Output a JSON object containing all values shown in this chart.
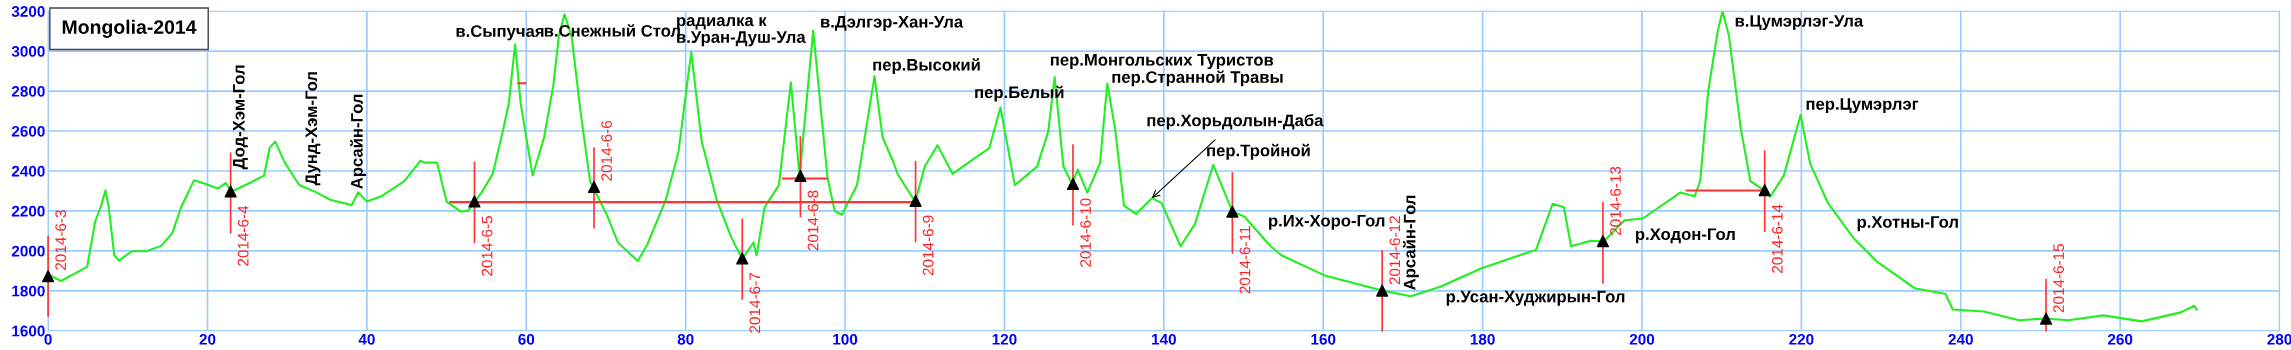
{
  "chart_data": {
    "type": "line",
    "title": "Mongolia-2014",
    "xlim": [
      0,
      280
    ],
    "xticks": [
      0,
      20,
      40,
      60,
      80,
      100,
      120,
      140,
      160,
      180,
      200,
      220,
      240,
      260,
      280
    ],
    "ylim": [
      1600,
      3200
    ],
    "yticks": [
      1600,
      1800,
      2000,
      2200,
      2400,
      2600,
      2800,
      3000,
      3200
    ],
    "grid": true,
    "legend": false,
    "series": [
      {
        "color": "#22ee22",
        "marker": "none",
        "x": [
          0,
          1.6,
          4.9,
          5.9,
          6.6,
          7.2,
          7.6,
          8.3,
          8.9,
          10.5,
          12.3,
          14.2,
          15.6,
          16.7,
          18.3,
          19.7,
          21.3,
          22.3,
          23.0,
          24.8,
          27.1,
          27.8,
          28.5,
          29.7,
          31.5,
          33.6,
          35.4,
          38.1,
          38.9,
          40.0,
          41.9,
          44.7,
          46.7,
          47.2,
          48.8,
          50.0,
          51.8,
          52.7,
          54.4,
          55.8,
          57.1,
          57.8,
          58.6,
          59.3,
          60.8,
          62.2,
          63.4,
          64.1,
          64.8,
          65.7,
          66.8,
          68.0,
          70.1,
          71.5,
          74.0,
          75.2,
          77.5,
          79.1,
          80.7,
          82.0,
          83.9,
          85.7,
          87.1,
          88.5,
          88.9,
          89.9,
          91.7,
          93.2,
          94.3,
          96.0,
          97.8,
          98.7,
          99.6,
          101.5,
          103.7,
          104.7,
          106.1,
          106.6,
          108.8,
          110.0,
          111.6,
          113.5,
          114.4,
          118.1,
          119.5,
          121.3,
          124.1,
          125.5,
          126.3,
          127.4,
          128.5,
          129.2,
          130.4,
          132.0,
          132.9,
          133.9,
          135.0,
          136.5,
          138.5,
          139.7,
          142.1,
          143.9,
          146.2,
          148.6,
          150.1,
          153.4,
          154.8,
          160.3,
          167.4,
          171.0,
          174.7,
          179.8,
          183.9,
          186.7,
          188.8,
          190.2,
          191.1,
          193.6,
          195.2,
          197.8,
          200.1,
          204.8,
          206.6,
          207.3,
          208.3,
          209.5,
          210.1,
          210.9,
          212.4,
          213.6,
          215.3,
          216.1,
          217.8,
          219.9,
          221.1,
          223.3,
          226.5,
          229.4,
          234.2,
          238.1,
          239.0,
          242.9,
          247.3,
          250.5,
          253.5,
          257.9,
          262.7,
          267.6,
          269.3,
          269.6
        ],
        "values": [
          1883,
          1849,
          1920,
          2146,
          2220,
          2303,
          2220,
          1979,
          1951,
          1998,
          1998,
          2025,
          2090,
          2220,
          2353,
          2336,
          2312,
          2340,
          2297,
          2330,
          2377,
          2516,
          2547,
          2442,
          2330,
          2294,
          2256,
          2229,
          2293,
          2247,
          2275,
          2349,
          2451,
          2442,
          2442,
          2247,
          2196,
          2201,
          2293,
          2386,
          2608,
          2737,
          3034,
          2737,
          2377,
          2562,
          2830,
          3080,
          3185,
          3071,
          2700,
          2349,
          2181,
          2042,
          1949,
          2033,
          2255,
          2496,
          2996,
          2551,
          2255,
          2070,
          1959,
          2042,
          1977,
          2218,
          2329,
          2844,
          2375,
          3103,
          2366,
          2199,
          2181,
          2329,
          2875,
          2570,
          2440,
          2385,
          2246,
          2422,
          2529,
          2385,
          2412,
          2514,
          2718,
          2329,
          2422,
          2598,
          2870,
          2422,
          2335,
          2407,
          2292,
          2440,
          2838,
          2607,
          2227,
          2185,
          2264,
          2240,
          2023,
          2134,
          2431,
          2196,
          2172,
          2023,
          1977,
          1875,
          1801,
          1773,
          1820,
          1912,
          1968,
          2005,
          2236,
          2218,
          2023,
          2051,
          2047,
          2153,
          2162,
          2292,
          2273,
          2349,
          2797,
          3099,
          3200,
          3080,
          2612,
          2349,
          2304,
          2271,
          2378,
          2680,
          2437,
          2242,
          2066,
          1949,
          1813,
          1784,
          1706,
          1696,
          1653,
          1661,
          1653,
          1677,
          1647,
          1692,
          1725,
          1706
        ]
      },
      {
        "type": "line",
        "color": "#ff3333",
        "marker": "none",
        "x": [
          50.5,
          108.8
        ],
        "values": [
          2244,
          2244
        ]
      },
      {
        "type": "line",
        "color": "#ff3333",
        "marker": "none",
        "x": [
          92.2,
          97.7
        ],
        "values": [
          2362,
          2362
        ]
      },
      {
        "type": "line",
        "color": "#ff3333",
        "marker": "none",
        "x": [
          205.6,
          215.3
        ],
        "values": [
          2302,
          2302
        ]
      },
      {
        "type": "line",
        "color": "#ff3333",
        "marker": "none",
        "x": [
          59.0,
          59.9
        ],
        "values": [
          2839,
          2839
        ]
      },
      {
        "type": "scatter",
        "color": "#000000",
        "marker": "triangle",
        "x": [
          0,
          22.9,
          53.5,
          68.5,
          87.1,
          94.4,
          108.85,
          128.6,
          148.6,
          167.4,
          195.1,
          215.4,
          250.7
        ],
        "values": [
          1873,
          2297,
          2247,
          2320,
          1962,
          2375,
          2250,
          2335,
          2196,
          1801,
          2048,
          2304,
          1661
        ],
        "errors": [
          [
            1674,
            2072
          ],
          [
            2090,
            2488
          ],
          [
            2044,
            2442
          ],
          [
            2116,
            2515
          ],
          [
            1759,
            2157
          ],
          [
            2172,
            2570
          ],
          [
            2047,
            2446
          ],
          [
            2131,
            2530
          ],
          [
            1990,
            2390
          ],
          [
            1600,
            1999
          ],
          [
            1840,
            2240
          ],
          [
            2099,
            2499
          ],
          [
            1600,
            1856
          ]
        ],
        "value_labels": [
          "2014-6-3",
          "2014-6-4",
          "2014-6-5",
          "2014-6-6",
          "2014-6-7",
          "2014-6-8",
          "2014-6-9",
          "2014-6-10",
          "2014-6-11",
          "2014-6-12",
          "2014-6-13",
          "2014-6-14",
          "2014-6-15"
        ]
      }
    ],
    "annotations": [
      {
        "text": "в.Сыпучая",
        "x": 58.6,
        "y": 3034
      },
      {
        "text": "в.Снежный Стол",
        "x": 64.8,
        "y": 3185
      },
      {
        "text": "радиалка к\nв.Уран-Душ-Ула",
        "x": 80.7,
        "y": 2996
      },
      {
        "text": "в.Дэлгэр-Хан-Ула",
        "x": 96.0,
        "y": 3103
      },
      {
        "text": "пер.Высокий",
        "x": 103.7,
        "y": 2875
      },
      {
        "text": "пер.Белый",
        "x": 119.5,
        "y": 2718
      },
      {
        "text": "пер.Монгольских Туристов",
        "x": 126.3,
        "y": 2870
      },
      {
        "text": "пер.Странной Травы",
        "x": 132.9,
        "y": 2838
      },
      {
        "text": "пер.Хорьдолын-Даба",
        "x": 138.5,
        "y": 2264
      },
      {
        "text": "пер.Тройной",
        "x": 146.2,
        "y": 2431
      },
      {
        "text": "р.Их-Хоро-Гол",
        "x": 150.1,
        "y": 2172
      },
      {
        "text": "р.Усан-Худжирын-Гол",
        "x": 171.0,
        "y": 1773
      },
      {
        "text": "р.Ходон-Гол",
        "x": 197.8,
        "y": 2153
      },
      {
        "text": "в.Цумэрлэг-Ула",
        "x": 210.1,
        "y": 3200
      },
      {
        "text": "пер.Цумэрлэг",
        "x": 219.9,
        "y": 2680
      },
      {
        "text": "р.Хотны-Гол",
        "x": 223.3,
        "y": 2242
      },
      {
        "text": "Дод-Хэм-Гол",
        "x": 24.8,
        "y": 2330
      },
      {
        "text": "Дунд-Хэм-Гол",
        "x": 33.6,
        "y": 2294
      },
      {
        "text": "Арсайн-Гол",
        "x": 38.9,
        "y": 2293
      },
      {
        "text": "Арсайн-Гол",
        "x": 171.0,
        "y": 1773
      }
    ]
  }
}
